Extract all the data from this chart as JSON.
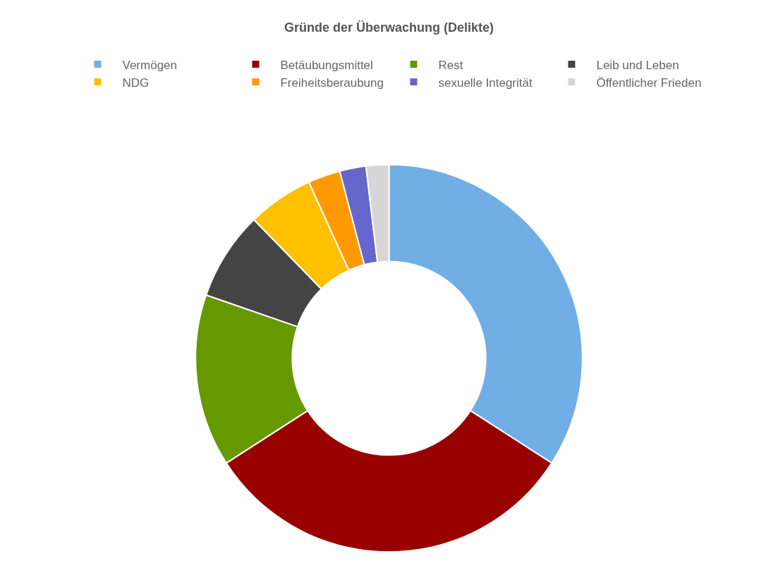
{
  "chart_data": {
    "type": "donut",
    "title": "Gründe der Überwachung (Delikte)",
    "categories": [
      "Vermögen",
      "Betäubungsmittel",
      "Rest",
      "Leib und Leben",
      "NDG",
      "Freiheitsberaubung",
      "sexuelle Integrität",
      "Öffentlicher Frieden"
    ],
    "values": [
      34.1,
      31.8,
      14.4,
      7.4,
      5.5,
      2.7,
      2.2,
      1.9
    ],
    "colors": [
      "#72aee6",
      "#990000",
      "#669900",
      "#444444",
      "#ffc000",
      "#ff9900",
      "#6666cc",
      "#d6d6d6"
    ],
    "legend": "top"
  }
}
